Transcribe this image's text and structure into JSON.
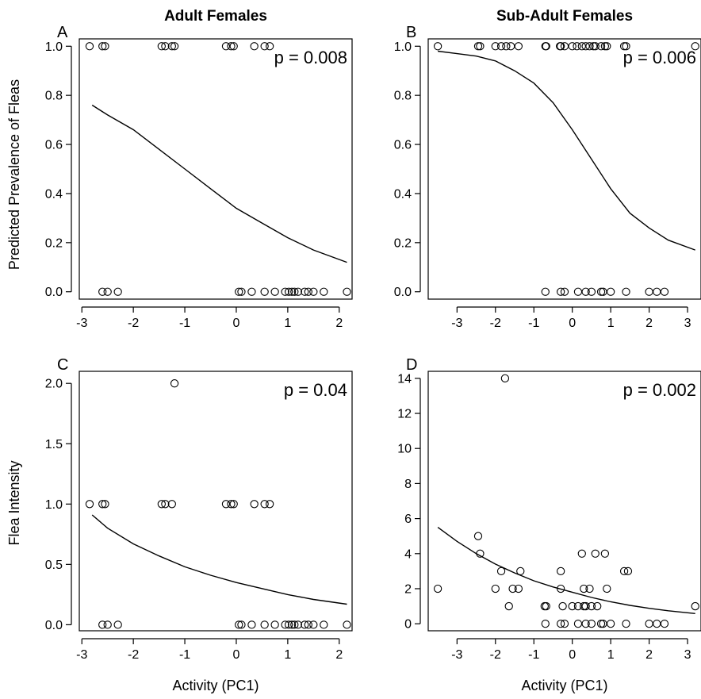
{
  "figure": {
    "col_titles": [
      "Adult Females",
      "Sub-Adult Females"
    ],
    "row_ylabels": [
      "Predicted Prevalence of Fleas",
      "Flea Intensity"
    ],
    "xlabel": "Activity (PC1)"
  },
  "chart_data": [
    {
      "id": "A",
      "type": "scatter",
      "panel_label": "A",
      "title": "Adult Females",
      "xlabel": "",
      "ylabel": "Predicted Prevalence of Fleas",
      "annotation": "p = 0.008",
      "xlim": [
        -3.05,
        2.25
      ],
      "ylim": [
        -0.03,
        1.03
      ],
      "xticks": [
        -3,
        -2,
        -1,
        0,
        1,
        2
      ],
      "yticks": [
        0.0,
        0.2,
        0.4,
        0.6,
        0.8,
        1.0
      ],
      "ytick_labels": [
        "0.0",
        "0.2",
        "0.4",
        "0.6",
        "0.8",
        "1.0"
      ],
      "x": [
        -2.85,
        -2.6,
        -2.55,
        -1.45,
        -1.38,
        -1.25,
        -1.2,
        -0.2,
        -0.1,
        -0.05,
        0.35,
        0.55,
        0.65,
        -2.6,
        -2.5,
        -2.3,
        0.05,
        0.1,
        0.3,
        0.55,
        0.75,
        0.95,
        1.02,
        1.08,
        1.13,
        1.2,
        1.33,
        1.4,
        1.5,
        1.7,
        2.15
      ],
      "y": [
        1,
        1,
        1,
        1,
        1,
        1,
        1,
        1,
        1,
        1,
        1,
        1,
        1,
        0,
        0,
        0,
        0,
        0,
        0,
        0,
        0,
        0,
        0,
        0,
        0,
        0,
        0,
        0,
        0,
        0,
        0
      ],
      "fit": {
        "x": [
          -2.8,
          -2.5,
          -2.0,
          -1.5,
          -1.0,
          -0.5,
          0.0,
          0.5,
          1.0,
          1.5,
          2.15
        ],
        "y": [
          0.76,
          0.72,
          0.66,
          0.58,
          0.5,
          0.42,
          0.34,
          0.28,
          0.22,
          0.17,
          0.12
        ]
      }
    },
    {
      "id": "B",
      "type": "scatter",
      "panel_label": "B",
      "title": "Sub-Adult Females",
      "xlabel": "",
      "ylabel": "",
      "annotation": "p = 0.006",
      "xlim": [
        -3.75,
        3.35
      ],
      "ylim": [
        -0.03,
        1.03
      ],
      "xticks": [
        -3,
        -2,
        -1,
        0,
        1,
        2,
        3
      ],
      "yticks": [
        0.0,
        0.2,
        0.4,
        0.6,
        0.8,
        1.0
      ],
      "ytick_labels": [
        "0.0",
        "0.2",
        "0.4",
        "0.6",
        "0.8",
        "1.0"
      ],
      "x": [
        -3.5,
        -2.45,
        -2.4,
        -2.0,
        -1.85,
        -1.72,
        -1.6,
        -1.4,
        -0.7,
        -0.68,
        -0.32,
        -0.3,
        -0.2,
        0.0,
        0.12,
        0.25,
        0.35,
        0.45,
        0.55,
        0.6,
        0.75,
        0.85,
        0.9,
        1.35,
        1.4,
        3.2,
        -0.7,
        -0.3,
        -0.2,
        0.15,
        0.35,
        0.5,
        0.75,
        0.8,
        1.0,
        1.4,
        2.0,
        2.2,
        2.4
      ],
      "y": [
        1,
        1,
        1,
        1,
        1,
        1,
        1,
        1,
        1,
        1,
        1,
        1,
        1,
        1,
        1,
        1,
        1,
        1,
        1,
        1,
        1,
        1,
        1,
        1,
        1,
        1,
        0,
        0,
        0,
        0,
        0,
        0,
        0,
        0,
        0,
        0,
        0,
        0,
        0
      ],
      "fit": {
        "x": [
          -3.5,
          -3.0,
          -2.5,
          -2.0,
          -1.5,
          -1.0,
          -0.5,
          0.0,
          0.5,
          1.0,
          1.5,
          2.0,
          2.5,
          3.2
        ],
        "y": [
          0.98,
          0.97,
          0.96,
          0.94,
          0.9,
          0.85,
          0.77,
          0.66,
          0.54,
          0.42,
          0.32,
          0.26,
          0.21,
          0.17
        ]
      }
    },
    {
      "id": "C",
      "type": "scatter",
      "panel_label": "C",
      "title": "",
      "xlabel": "Activity (PC1)",
      "ylabel": "Flea Intensity",
      "annotation": "p = 0.04",
      "xlim": [
        -3.05,
        2.25
      ],
      "ylim": [
        -0.05,
        2.1
      ],
      "xticks": [
        -3,
        -2,
        -1,
        0,
        1,
        2
      ],
      "yticks": [
        0.0,
        0.5,
        1.0,
        1.5,
        2.0
      ],
      "ytick_labels": [
        "0.0",
        "0.5",
        "1.0",
        "1.5",
        "2.0"
      ],
      "x": [
        -1.2,
        -2.85,
        -2.6,
        -2.55,
        -1.45,
        -1.38,
        -1.25,
        -0.2,
        -0.1,
        -0.05,
        0.35,
        0.55,
        0.65,
        -2.6,
        -2.5,
        -2.3,
        0.05,
        0.1,
        0.3,
        0.55,
        0.75,
        0.95,
        1.02,
        1.08,
        1.13,
        1.2,
        1.33,
        1.4,
        1.5,
        1.7,
        2.15
      ],
      "y": [
        2,
        1,
        1,
        1,
        1,
        1,
        1,
        1,
        1,
        1,
        1,
        1,
        1,
        0,
        0,
        0,
        0,
        0,
        0,
        0,
        0,
        0,
        0,
        0,
        0,
        0,
        0,
        0,
        0,
        0,
        0
      ],
      "fit": {
        "x": [
          -2.8,
          -2.5,
          -2.0,
          -1.5,
          -1.0,
          -0.5,
          0.0,
          0.5,
          1.0,
          1.5,
          2.15
        ],
        "y": [
          0.91,
          0.8,
          0.67,
          0.57,
          0.48,
          0.41,
          0.35,
          0.3,
          0.25,
          0.21,
          0.17
        ]
      }
    },
    {
      "id": "D",
      "type": "scatter",
      "panel_label": "D",
      "title": "",
      "xlabel": "Activity (PC1)",
      "ylabel": "",
      "annotation": "p = 0.002",
      "xlim": [
        -3.75,
        3.35
      ],
      "ylim": [
        -0.4,
        14.4
      ],
      "xticks": [
        -3,
        -2,
        -1,
        0,
        1,
        2,
        3
      ],
      "yticks": [
        0,
        2,
        4,
        6,
        8,
        10,
        12,
        14
      ],
      "ytick_labels": [
        "0",
        "2",
        "4",
        "6",
        "8",
        "10",
        "12",
        "14"
      ],
      "x": [
        -1.75,
        -2.45,
        -2.4,
        -0.3,
        0.25,
        0.6,
        0.85,
        -1.85,
        -1.35,
        -3.5,
        -2.0,
        -1.55,
        -1.4,
        -0.3,
        0.3,
        0.45,
        0.9,
        1.35,
        1.45,
        -1.65,
        -0.72,
        -0.68,
        -0.25,
        0.0,
        0.15,
        0.3,
        0.35,
        0.5,
        0.65,
        3.2,
        -0.7,
        -0.3,
        -0.2,
        0.15,
        0.35,
        0.5,
        0.75,
        0.8,
        1.0,
        1.4,
        2.0,
        2.2,
        2.4
      ],
      "y": [
        14,
        5,
        4,
        3,
        4,
        4,
        4,
        3,
        3,
        2,
        2,
        2,
        2,
        2,
        2,
        2,
        2,
        3,
        3,
        1,
        1,
        1,
        1,
        1,
        1,
        1,
        1,
        1,
        1,
        1,
        0,
        0,
        0,
        0,
        0,
        0,
        0,
        0,
        0,
        0,
        0,
        0,
        0
      ],
      "fit": {
        "x": [
          -3.5,
          -3.0,
          -2.5,
          -2.0,
          -1.5,
          -1.0,
          -0.5,
          0.0,
          0.5,
          1.0,
          1.5,
          2.0,
          2.5,
          3.2
        ],
        "y": [
          5.5,
          4.7,
          4.0,
          3.4,
          2.9,
          2.45,
          2.1,
          1.8,
          1.5,
          1.25,
          1.05,
          0.88,
          0.74,
          0.58
        ]
      }
    }
  ]
}
